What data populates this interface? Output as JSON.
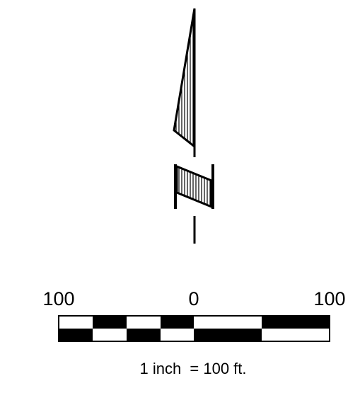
{
  "north_arrow": {
    "icon": "north-arrow-icon",
    "stroke_color": "#000000",
    "fill_color": "#ffffff"
  },
  "scale_bar": {
    "labels": {
      "left": "100",
      "center": "0",
      "right": "100"
    },
    "caption": "1 inch  = 100 ft.",
    "colors": {
      "dark": "#000000",
      "light": "#ffffff"
    }
  }
}
